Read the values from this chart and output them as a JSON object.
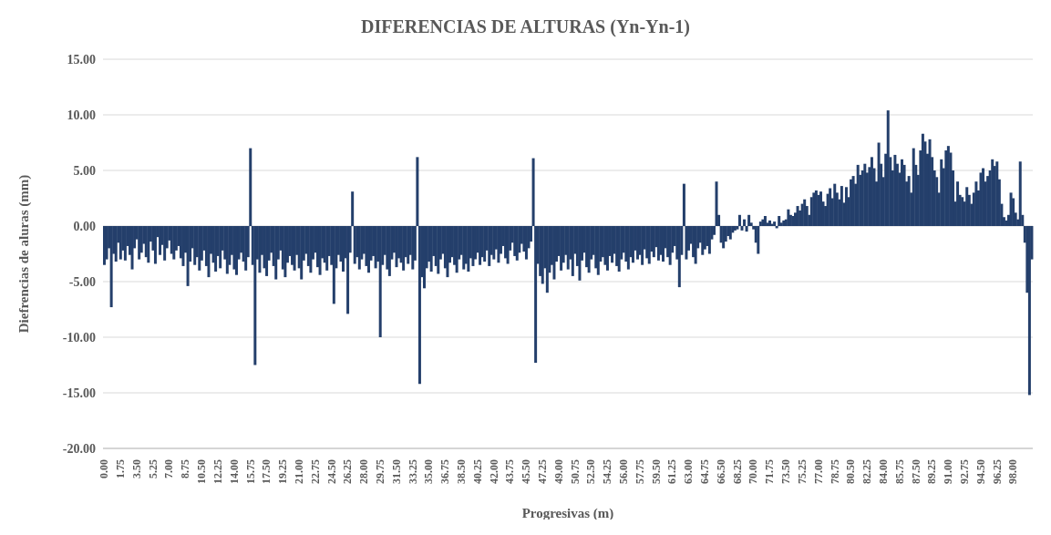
{
  "chart_data": {
    "type": "bar",
    "title": "DIFERENCIAS DE ALTURAS (Yn-Yn-1)",
    "xlabel": "Progresivas (m)",
    "ylabel": "Diefrencias de aluras (mm)",
    "categories": [
      "0.00",
      null,
      null,
      null,
      null,
      null,
      null,
      "1.75",
      null,
      null,
      null,
      null,
      null,
      null,
      "3.50",
      null,
      null,
      null,
      null,
      null,
      null,
      "5.25",
      null,
      null,
      null,
      null,
      null,
      null,
      "7.00",
      null,
      null,
      null,
      null,
      null,
      null,
      "8.75",
      null,
      null,
      null,
      null,
      null,
      null,
      "10.50",
      null,
      null,
      null,
      null,
      null,
      null,
      "12.25",
      null,
      null,
      null,
      null,
      null,
      null,
      "14.00",
      null,
      null,
      null,
      null,
      null,
      null,
      "15.75",
      null,
      null,
      null,
      null,
      null,
      null,
      "17.50",
      null,
      null,
      null,
      null,
      null,
      null,
      "19.25",
      null,
      null,
      null,
      null,
      null,
      null,
      "21.00",
      null,
      null,
      null,
      null,
      null,
      null,
      "22.75",
      null,
      null,
      null,
      null,
      null,
      null,
      "24.50",
      null,
      null,
      null,
      null,
      null,
      null,
      "26.25",
      null,
      null,
      null,
      null,
      null,
      null,
      "28.00",
      null,
      null,
      null,
      null,
      null,
      null,
      "29.75",
      null,
      null,
      null,
      null,
      null,
      null,
      "31.50",
      null,
      null,
      null,
      null,
      null,
      null,
      "33.25",
      null,
      null,
      null,
      null,
      null,
      null,
      "35.00",
      null,
      null,
      null,
      null,
      null,
      null,
      "36.75",
      null,
      null,
      null,
      null,
      null,
      null,
      "38.50",
      null,
      null,
      null,
      null,
      null,
      null,
      "40.25",
      null,
      null,
      null,
      null,
      null,
      null,
      "42.00",
      null,
      null,
      null,
      null,
      null,
      null,
      "43.75",
      null,
      null,
      null,
      null,
      null,
      null,
      "45.50",
      null,
      null,
      null,
      null,
      null,
      null,
      "47.25",
      null,
      null,
      null,
      null,
      null,
      null,
      "49.00",
      null,
      null,
      null,
      null,
      null,
      null,
      "50.75",
      null,
      null,
      null,
      null,
      null,
      null,
      "52.50",
      null,
      null,
      null,
      null,
      null,
      null,
      "54.25",
      null,
      null,
      null,
      null,
      null,
      null,
      "56.00",
      null,
      null,
      null,
      null,
      null,
      null,
      "57.75",
      null,
      null,
      null,
      null,
      null,
      null,
      "59.50",
      null,
      null,
      null,
      null,
      null,
      null,
      "61.25",
      null,
      null,
      null,
      null,
      null,
      null,
      "63.00",
      null,
      null,
      null,
      null,
      null,
      null,
      "64.75",
      null,
      null,
      null,
      null,
      null,
      null,
      "66.50",
      null,
      null,
      null,
      null,
      null,
      null,
      "68.25",
      null,
      null,
      null,
      null,
      null,
      null,
      "70.00",
      null,
      null,
      null,
      null,
      null,
      null,
      "71.75",
      null,
      null,
      null,
      null,
      null,
      null,
      "73.50",
      null,
      null,
      null,
      null,
      null,
      null,
      "75.25",
      null,
      null,
      null,
      null,
      null,
      null,
      "77.00",
      null,
      null,
      null,
      null,
      null,
      null,
      "78.75",
      null,
      null,
      null,
      null,
      null,
      null,
      "80.50",
      null,
      null,
      null,
      null,
      null,
      null,
      "82.25",
      null,
      null,
      null,
      null,
      null,
      null,
      "84.00",
      null,
      null,
      null,
      null,
      null,
      null,
      "85.75",
      null,
      null,
      null,
      null,
      null,
      null,
      "87.50",
      null,
      null,
      null,
      null,
      null,
      null,
      "89.25",
      null,
      null,
      null,
      null,
      null,
      null,
      "91.00",
      null,
      null,
      null,
      null,
      null,
      null,
      "92.75",
      null,
      null,
      null,
      null,
      null,
      null,
      "94.50",
      null,
      null,
      null,
      null,
      null,
      null,
      "96.25",
      null,
      null,
      null,
      null,
      null,
      null,
      "98.00",
      null,
      null,
      null,
      null,
      null,
      null,
      null,
      null
    ],
    "values": [
      -3.5,
      -3.0,
      -2.0,
      -7.3,
      -2.5,
      -3.2,
      -1.5,
      -3.0,
      -2.2,
      -3.1,
      -1.8,
      -2.6,
      -3.9,
      -2.0,
      -1.2,
      -3.0,
      -2.4,
      -1.6,
      -2.8,
      -3.3,
      -1.4,
      -2.2,
      -3.4,
      -1.0,
      -2.6,
      -1.7,
      -3.1,
      -2.0,
      -1.3,
      -2.5,
      -3.0,
      -2.2,
      -1.8,
      -2.9,
      -3.6,
      -2.4,
      -5.4,
      -3.2,
      -2.0,
      -3.5,
      -2.8,
      -4.0,
      -3.1,
      -2.2,
      -3.6,
      -4.6,
      -2.5,
      -3.3,
      -4.1,
      -2.7,
      -3.8,
      -2.2,
      -3.0,
      -4.3,
      -3.5,
      -2.6,
      -3.9,
      -4.4,
      -3.0,
      -2.4,
      -3.2,
      -4.0,
      -2.8,
      7.0,
      -3.5,
      -12.5,
      -3.0,
      -4.2,
      -2.6,
      -3.8,
      -4.5,
      -3.1,
      -2.4,
      -3.6,
      -4.8,
      -3.0,
      -2.2,
      -3.9,
      -4.6,
      -3.3,
      -2.7,
      -3.5,
      -4.0,
      -2.6,
      -3.8,
      -4.8,
      -3.1,
      -2.5,
      -3.6,
      -4.2,
      -3.0,
      -2.4,
      -3.7,
      -4.4,
      -2.9,
      -3.3,
      -4.0,
      -2.7,
      -3.5,
      -7.0,
      -3.8,
      -2.6,
      -3.2,
      -4.1,
      -2.9,
      -7.9,
      -2.4,
      3.1,
      -3.4,
      -2.8,
      -3.9,
      -3.0,
      -2.5,
      -3.6,
      -4.2,
      -3.1,
      -2.7,
      -3.8,
      -3.2,
      -10.0,
      -3.5,
      -2.6,
      -3.9,
      -4.5,
      -3.0,
      -2.4,
      -3.7,
      -2.9,
      -3.3,
      -4.0,
      -2.8,
      -3.4,
      -2.6,
      -3.9,
      -3.1,
      6.2,
      -14.2,
      -4.6,
      -5.6,
      -3.8,
      -3.2,
      -4.1,
      -2.7,
      -3.6,
      -4.3,
      -3.0,
      -2.5,
      -3.8,
      -4.6,
      -3.3,
      -2.8,
      -3.5,
      -4.2,
      -3.0,
      -2.6,
      -3.9,
      -3.4,
      -4.1,
      -2.9,
      -3.6,
      -3.0,
      -2.4,
      -3.5,
      -2.8,
      -3.2,
      -2.2,
      -3.6,
      -2.6,
      -3.0,
      -2.1,
      -3.3,
      -2.5,
      -1.8,
      -2.9,
      -3.4,
      -2.2,
      -1.5,
      -2.7,
      -3.1,
      -2.4,
      -1.6,
      -2.3,
      -3.0,
      -2.0,
      -1.4,
      6.1,
      -12.3,
      -3.4,
      -4.5,
      -5.2,
      -3.8,
      -6.0,
      -4.2,
      -3.5,
      -4.8,
      -3.2,
      -2.7,
      -4.0,
      -3.3,
      -2.6,
      -3.9,
      -3.0,
      -4.5,
      -2.5,
      -3.6,
      -4.9,
      -3.1,
      -2.4,
      -3.7,
      -4.2,
      -3.0,
      -2.6,
      -3.8,
      -4.4,
      -3.2,
      -2.8,
      -3.5,
      -4.0,
      -2.7,
      -3.3,
      -2.5,
      -3.6,
      -4.1,
      -3.0,
      -2.4,
      -3.2,
      -3.9,
      -2.8,
      -3.3,
      -2.2,
      -3.0,
      -2.6,
      -3.5,
      -2.1,
      -2.9,
      -3.4,
      -2.3,
      -2.8,
      -1.9,
      -3.1,
      -2.6,
      -3.2,
      -2.0,
      -2.8,
      -3.5,
      -2.4,
      -1.8,
      -3.0,
      -5.5,
      -2.6,
      3.8,
      -3.0,
      -2.2,
      -1.6,
      -2.8,
      -3.4,
      -2.0,
      -1.5,
      -2.6,
      -2.1,
      -1.8,
      -2.5,
      -1.2,
      -0.8,
      4.0,
      1.0,
      -1.5,
      -2.0,
      -1.4,
      -0.9,
      -1.2,
      -0.6,
      -0.4,
      -0.3,
      1.0,
      -0.4,
      0.6,
      -0.5,
      1.0,
      0.3,
      -0.3,
      -1.5,
      -2.5,
      0.4,
      0.6,
      0.9,
      0.3,
      0.5,
      0.2,
      0.4,
      -0.2,
      0.9,
      0.3,
      0.5,
      0.6,
      1.5,
      1.0,
      0.9,
      1.2,
      1.8,
      1.4,
      2.0,
      2.4,
      1.8,
      1.0,
      2.6,
      3.0,
      3.2,
      2.8,
      3.1,
      2.2,
      1.8,
      2.9,
      3.4,
      2.5,
      3.8,
      3.0,
      2.4,
      3.6,
      2.1,
      3.5,
      2.6,
      4.2,
      4.5,
      3.8,
      5.5,
      4.6,
      5.0,
      5.6,
      4.8,
      5.3,
      6.2,
      5.2,
      4.0,
      7.5,
      5.6,
      4.4,
      6.5,
      10.4,
      6.2,
      5.0,
      6.4,
      5.6,
      4.8,
      6.0,
      5.5,
      4.0,
      4.5,
      3.0,
      7.0,
      5.5,
      4.6,
      6.8,
      8.3,
      7.6,
      6.5,
      7.8,
      6.2,
      5.0,
      4.4,
      3.0,
      6.0,
      5.2,
      6.8,
      7.2,
      6.6,
      5.0,
      2.2,
      4.0,
      2.8,
      2.6,
      2.2,
      3.5,
      2.8,
      2.0,
      3.0,
      4.0,
      3.2,
      4.8,
      5.2,
      4.0,
      4.5,
      5.0,
      6.0,
      5.4,
      5.8,
      4.2,
      2.0,
      0.8,
      0.5,
      1.0,
      3.0,
      2.5,
      1.2,
      0.6,
      5.8,
      1.0,
      -1.5,
      -6.0,
      -15.2,
      -3.0
    ],
    "color": "#243f6b",
    "ylim": [
      -20,
      15
    ],
    "yticks": [
      {
        "value": -20,
        "label": "-20.00"
      },
      {
        "value": -15,
        "label": "-15.00"
      },
      {
        "value": -10,
        "label": "-10.00"
      },
      {
        "value": -5,
        "label": "-5.00"
      },
      {
        "value": 0,
        "label": "0.00"
      },
      {
        "value": 5,
        "label": "5.00"
      },
      {
        "value": 10,
        "label": "10.00"
      },
      {
        "value": 15,
        "label": "15.00"
      }
    ],
    "grid": "y"
  }
}
